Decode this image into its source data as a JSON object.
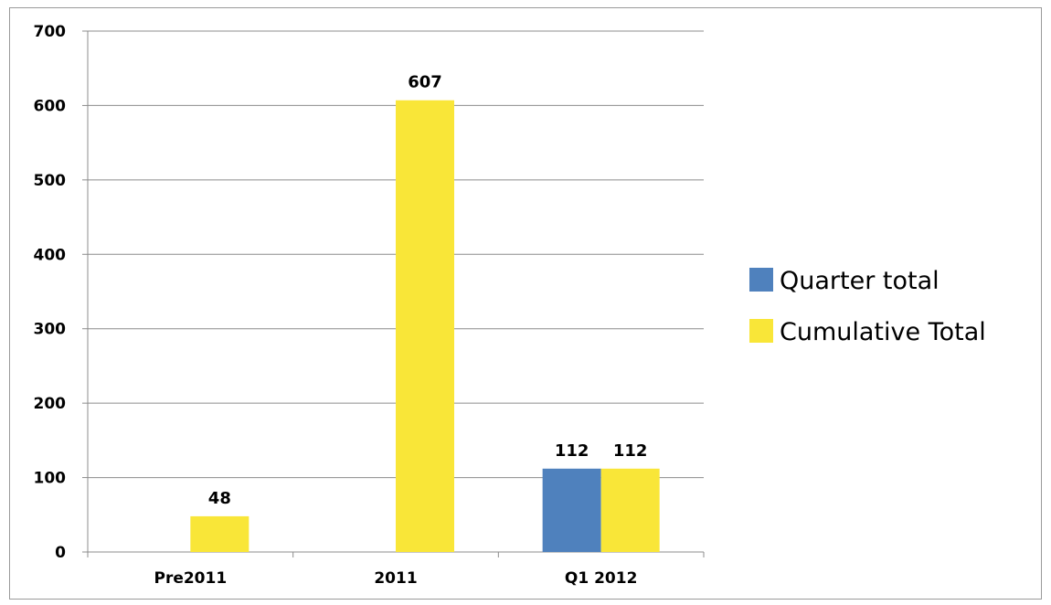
{
  "chart_data": {
    "type": "bar",
    "categories": [
      "Pre2011",
      "2011",
      "Q1 2012"
    ],
    "series": [
      {
        "name": "Quarter total",
        "values": [
          null,
          null,
          112
        ],
        "color": "#4f81bd"
      },
      {
        "name": "Cumulative Total",
        "values": [
          48,
          607,
          112
        ],
        "color": "#f9e638"
      }
    ],
    "data_labels": [
      {
        "series": 1,
        "category": 0,
        "text": "48"
      },
      {
        "series": 1,
        "category": 1,
        "text": "607"
      },
      {
        "series": 0,
        "category": 2,
        "text": "112"
      },
      {
        "series": 1,
        "category": 2,
        "text": "112"
      }
    ],
    "ylim": [
      0,
      700
    ],
    "yticks": [
      "0",
      "100",
      "200",
      "300",
      "400",
      "500",
      "600",
      "700"
    ],
    "ytick_values": [
      0,
      100,
      200,
      300,
      400,
      500,
      600,
      700
    ],
    "grid": true,
    "legend_position": "right",
    "title": "",
    "xlabel": "",
    "ylabel": ""
  }
}
